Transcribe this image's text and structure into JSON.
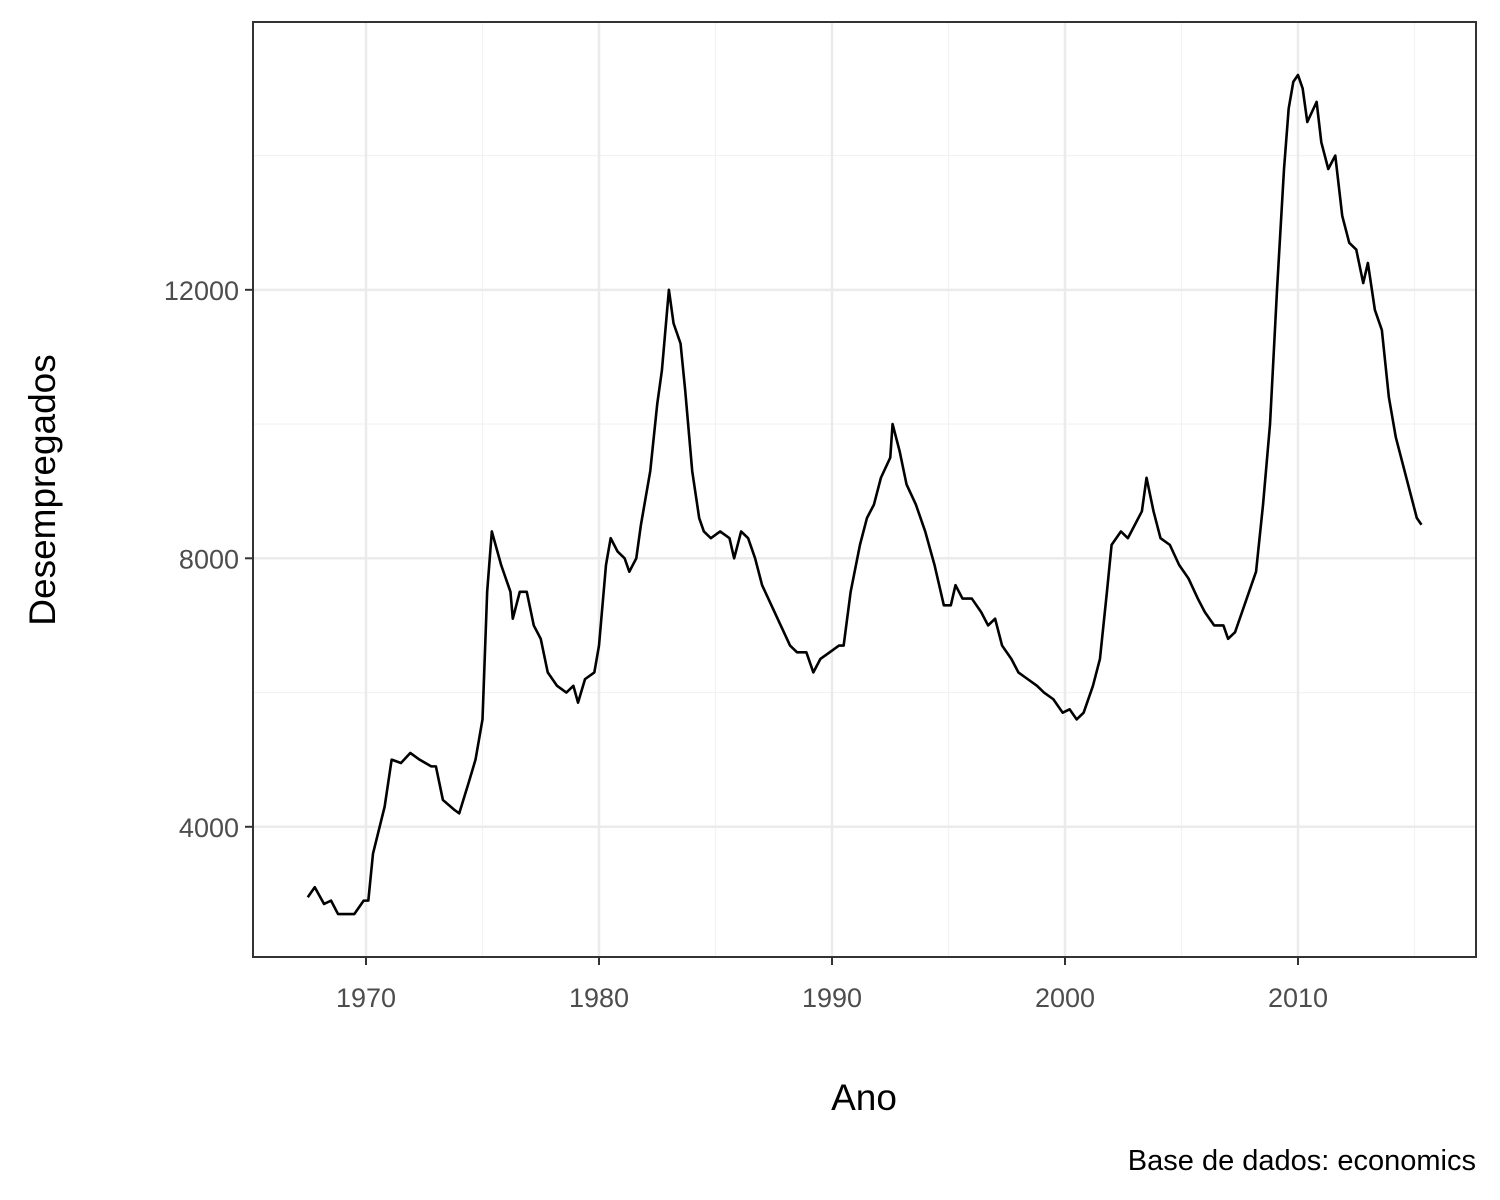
{
  "chart_data": {
    "type": "line",
    "x_label": "Ano",
    "y_label": "Desempregados",
    "caption": "Base de dados: economics",
    "xlim": [
      1965.15,
      2017.64
    ],
    "ylim": [
      2060,
      15990
    ],
    "xticks": [
      1970,
      1980,
      1990,
      2000,
      2010
    ],
    "yticks": [
      4000,
      8000,
      12000
    ],
    "x_minor_grid": [
      1975,
      1985,
      1995,
      2005,
      2015
    ],
    "y_minor_grid": [
      6000,
      10000,
      14000
    ],
    "grid": true,
    "x": [
      1967.5,
      1967.8,
      1968.2,
      1968.5,
      1968.8,
      1969.5,
      1969.9,
      1970.1,
      1970.3,
      1970.8,
      1971.1,
      1971.5,
      1971.9,
      1972.3,
      1972.8,
      1973.0,
      1973.3,
      1973.8,
      1974.0,
      1974.4,
      1974.7,
      1975.0,
      1975.2,
      1975.4,
      1975.8,
      1976.2,
      1976.3,
      1976.6,
      1976.9,
      1977.2,
      1977.5,
      1977.8,
      1978.2,
      1978.6,
      1978.9,
      1979.1,
      1979.4,
      1979.8,
      1980.0,
      1980.3,
      1980.5,
      1980.8,
      1981.1,
      1981.3,
      1981.6,
      1981.8,
      1982.2,
      1982.5,
      1982.7,
      1982.9,
      1983.0,
      1983.2,
      1983.5,
      1983.7,
      1984.0,
      1984.3,
      1984.5,
      1984.8,
      1985.2,
      1985.6,
      1985.8,
      1986.1,
      1986.4,
      1986.7,
      1987.0,
      1987.4,
      1987.8,
      1988.2,
      1988.5,
      1988.9,
      1989.2,
      1989.5,
      1989.9,
      1990.3,
      1990.5,
      1990.8,
      1991.2,
      1991.5,
      1991.8,
      1992.1,
      1992.5,
      1992.6,
      1992.9,
      1993.2,
      1993.6,
      1994.0,
      1994.4,
      1994.8,
      1995.1,
      1995.3,
      1995.6,
      1996.0,
      1996.4,
      1996.7,
      1997.0,
      1997.3,
      1997.7,
      1998.0,
      1998.4,
      1998.8,
      1999.1,
      1999.5,
      1999.9,
      2000.2,
      2000.5,
      2000.8,
      2001.2,
      2001.5,
      2001.8,
      2002.0,
      2002.4,
      2002.7,
      2003.0,
      2003.3,
      2003.5,
      2003.8,
      2004.1,
      2004.5,
      2004.9,
      2005.3,
      2005.7,
      2006.0,
      2006.4,
      2006.8,
      2007.0,
      2007.3,
      2007.6,
      2007.9,
      2008.2,
      2008.5,
      2008.8,
      2009.1,
      2009.4,
      2009.6,
      2009.8,
      2010.0,
      2010.2,
      2010.4,
      2010.8,
      2011.0,
      2011.3,
      2011.6,
      2011.9,
      2012.2,
      2012.5,
      2012.8,
      2013.0,
      2013.3,
      2013.6,
      2013.9,
      2014.2,
      2014.5,
      2014.8,
      2015.1,
      2015.3
    ],
    "series": [
      {
        "color": "#000000",
        "values": [
          2950,
          3100,
          2850,
          2900,
          2700,
          2700,
          2900,
          2900,
          3600,
          4300,
          5000,
          4950,
          5100,
          5000,
          4900,
          4900,
          4400,
          4250,
          4200,
          4650,
          5000,
          5600,
          7500,
          8400,
          7900,
          7500,
          7100,
          7500,
          7500,
          7000,
          6800,
          6300,
          6100,
          6000,
          6100,
          5850,
          6200,
          6300,
          6700,
          7900,
          8300,
          8100,
          8000,
          7800,
          8000,
          8500,
          9300,
          10300,
          10800,
          11600,
          12000,
          11500,
          11200,
          10500,
          9300,
          8600,
          8400,
          8300,
          8400,
          8300,
          8000,
          8400,
          8300,
          8000,
          7600,
          7300,
          7000,
          6700,
          6600,
          6600,
          6300,
          6500,
          6600,
          6700,
          6700,
          7500,
          8200,
          8600,
          8800,
          9200,
          9500,
          10000,
          9600,
          9100,
          8800,
          8400,
          7900,
          7300,
          7300,
          7600,
          7400,
          7400,
          7200,
          7000,
          7100,
          6700,
          6500,
          6300,
          6200,
          6100,
          6000,
          5900,
          5700,
          5750,
          5600,
          5700,
          6100,
          6500,
          7500,
          8200,
          8400,
          8300,
          8500,
          8700,
          9200,
          8700,
          8300,
          8200,
          7900,
          7700,
          7400,
          7200,
          7000,
          7000,
          6800,
          6900,
          7200,
          7500,
          7800,
          8800,
          10000,
          12000,
          13800,
          14700,
          15100,
          15200,
          15000,
          14500,
          14800,
          14200,
          13800,
          14000,
          13100,
          12700,
          12600,
          12100,
          12400,
          11700,
          11400,
          10400,
          9800,
          9400,
          9000,
          8600,
          8500
        ]
      }
    ]
  }
}
